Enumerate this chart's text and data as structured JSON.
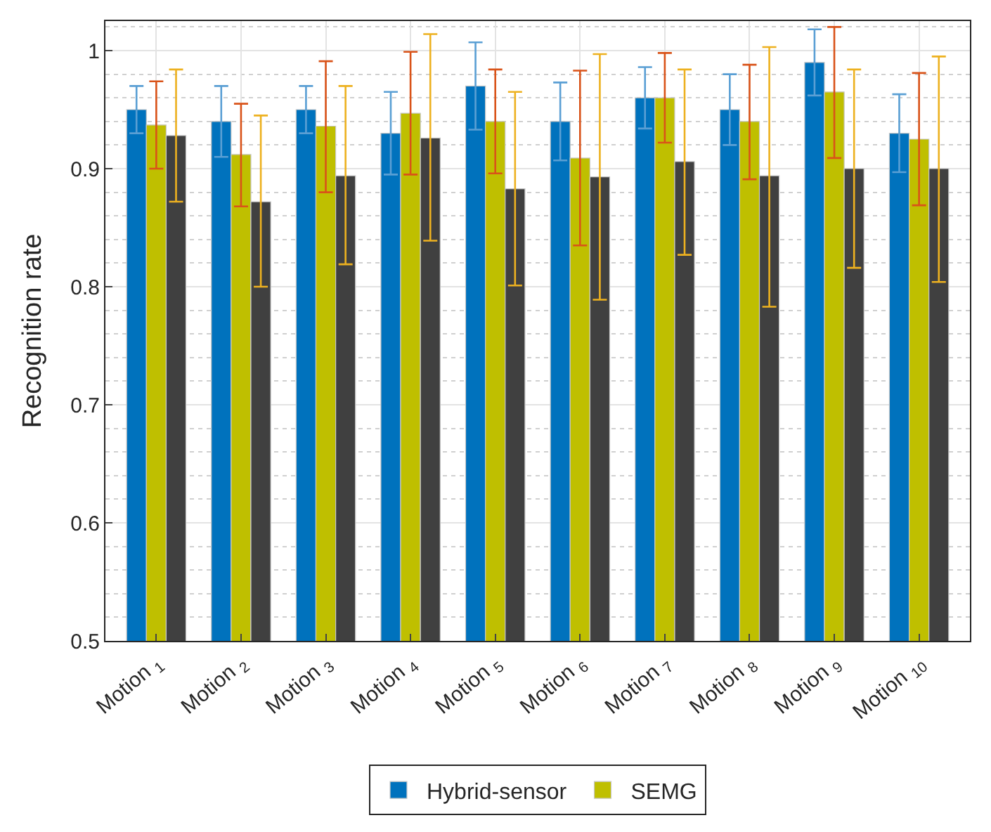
{
  "chart_data": {
    "type": "bar",
    "ylabel": "Recognition rate",
    "categories": [
      "Motion $_{1}$",
      "Motion $_{2}$",
      "Motion $_{3}$",
      "Motion $_{4}$",
      "Motion $_{5}$",
      "Motion $_{6}$",
      "Motion $_{7}$",
      "Motion $_{8}$",
      "Motion $_{9}$",
      "Motion $_{10}$"
    ],
    "series": [
      {
        "name": "Hybrid-sensor",
        "color": "#0072bd",
        "values": [
          0.95,
          0.94,
          0.95,
          0.93,
          0.97,
          0.94,
          0.96,
          0.95,
          0.99,
          0.93
        ],
        "errors": [
          0.02,
          0.03,
          0.02,
          0.035,
          0.037,
          0.033,
          0.026,
          0.03,
          0.028,
          0.033
        ]
      },
      {
        "name": "SEMG",
        "color": "#bfbf00",
        "values": [
          0.937,
          0.912,
          0.936,
          0.947,
          0.94,
          0.909,
          0.96,
          0.94,
          0.965,
          0.925
        ],
        "errors": [
          [
            0.9,
            0.974
          ],
          [
            0.868,
            0.955
          ],
          [
            0.88,
            0.991
          ],
          [
            0.895,
            0.999
          ],
          [
            0.896,
            0.984
          ],
          [
            0.835,
            0.983
          ],
          [
            0.922,
            0.998
          ],
          [
            0.891,
            0.988
          ],
          [
            0.909,
            1.02
          ],
          [
            0.869,
            0.981
          ]
        ]
      },
      {
        "color": "#404040",
        "values": [
          0.928,
          0.872,
          0.894,
          0.926,
          0.883,
          0.893,
          0.906,
          0.894,
          0.9,
          0.9
        ],
        "errors": [
          [
            0.872,
            0.984
          ],
          [
            0.8,
            0.945
          ],
          [
            0.819,
            0.97
          ],
          [
            0.839,
            1.014
          ],
          [
            0.801,
            0.965
          ],
          [
            0.789,
            0.997
          ],
          [
            0.827,
            0.984
          ],
          [
            0.783,
            1.003
          ],
          [
            0.816,
            0.984
          ],
          [
            0.804,
            0.995
          ]
        ]
      }
    ],
    "ylim": [
      0.5,
      1.025
    ],
    "yticks": [
      0.5,
      0.6,
      0.7,
      0.8,
      0.9,
      1
    ],
    "grid": true,
    "legend": "bottom"
  }
}
